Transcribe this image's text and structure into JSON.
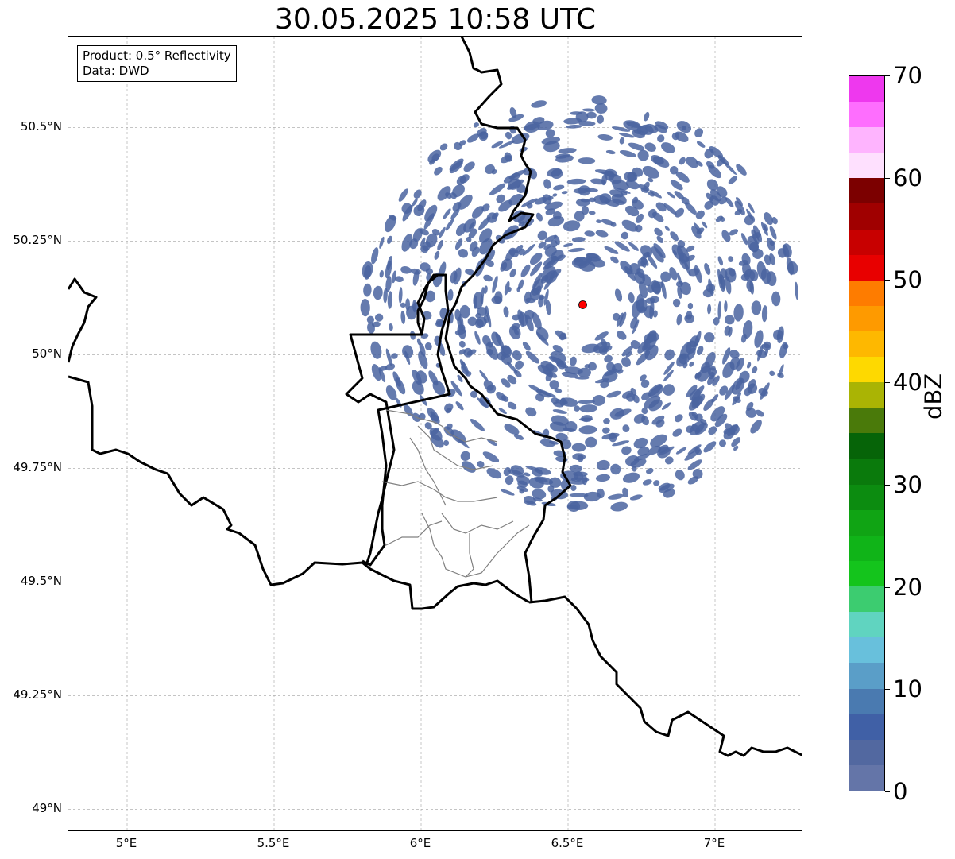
{
  "title": "30.05.2025 10:58 UTC",
  "info": {
    "product": "Product: 0.5° Reflectivity",
    "data": "Data: DWD"
  },
  "map": {
    "lon_range": [
      4.8,
      7.3
    ],
    "lat_range": [
      48.95,
      50.7
    ],
    "x_ticks": [
      {
        "value": 5.0,
        "label": "5°E"
      },
      {
        "value": 5.5,
        "label": "5.5°E"
      },
      {
        "value": 6.0,
        "label": "6°E"
      },
      {
        "value": 6.5,
        "label": "6.5°E"
      },
      {
        "value": 7.0,
        "label": "7°E"
      }
    ],
    "y_ticks": [
      {
        "value": 50.5,
        "label": "50.5°N"
      },
      {
        "value": 50.25,
        "label": "50.25°N"
      },
      {
        "value": 50.0,
        "label": "50°N"
      },
      {
        "value": 49.75,
        "label": "49.75°N"
      },
      {
        "value": 49.5,
        "label": "49.5°N"
      },
      {
        "value": 49.25,
        "label": "49.25°N"
      },
      {
        "value": 49.0,
        "label": "49°N"
      }
    ],
    "radar_site": {
      "lon": 6.55,
      "lat": 50.11,
      "color": "#ff0000"
    },
    "echo_color": "#4a64a0",
    "grid": true
  },
  "colorbar": {
    "label": "dBZ",
    "min": 0,
    "max": 70,
    "ticks": [
      "0",
      "10",
      "20",
      "30",
      "40",
      "50",
      "60",
      "70"
    ],
    "colors": [
      "#6475a8",
      "#5268a0",
      "#4060a6",
      "#4a7ab0",
      "#5a9ec8",
      "#68c0dc",
      "#60d4c0",
      "#3ccc70",
      "#14c41c",
      "#10b418",
      "#10a414",
      "#0c8c10",
      "#0a7a0c",
      "#066408",
      "#4a7a0a",
      "#aab404",
      "#fed900",
      "#feb800",
      "#fe9a00",
      "#fe7c00",
      "#e80000",
      "#c80000",
      "#a00000",
      "#7c0000",
      "#fee0fe",
      "#feb4fe",
      "#fe6efe",
      "#ee38ee"
    ]
  }
}
